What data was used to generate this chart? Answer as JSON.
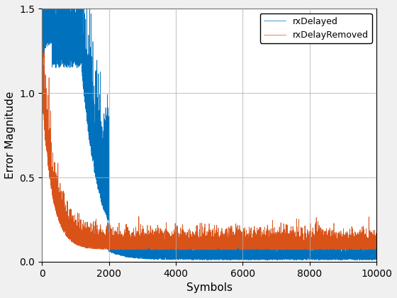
{
  "title": "",
  "xlabel": "Symbols",
  "ylabel": "Error Magnitude",
  "xlim": [
    0,
    10000
  ],
  "ylim": [
    0,
    1.5
  ],
  "yticks": [
    0,
    0.5,
    1.0,
    1.5
  ],
  "xticks": [
    0,
    2000,
    4000,
    6000,
    8000,
    10000
  ],
  "n_symbols": 10000,
  "color_delayed": "#0072BD",
  "color_removed": "#D95319",
  "legend_labels": [
    "rxDelayed",
    "rxDelayRemoved"
  ],
  "legend_loc": "upper right",
  "figsize": [
    5.6,
    4.2
  ],
  "dpi": 100,
  "seed": 42
}
